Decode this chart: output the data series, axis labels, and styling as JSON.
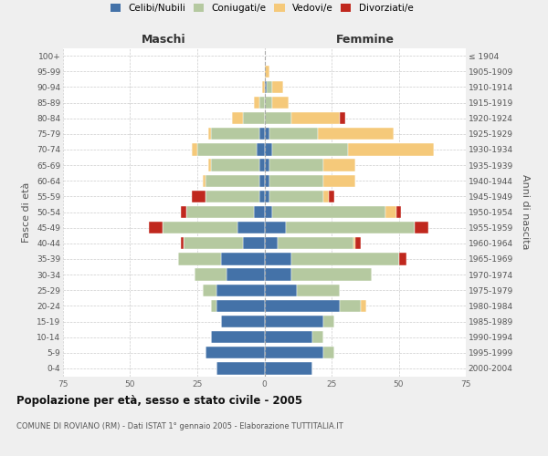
{
  "age_groups": [
    "0-4",
    "5-9",
    "10-14",
    "15-19",
    "20-24",
    "25-29",
    "30-34",
    "35-39",
    "40-44",
    "45-49",
    "50-54",
    "55-59",
    "60-64",
    "65-69",
    "70-74",
    "75-79",
    "80-84",
    "85-89",
    "90-94",
    "95-99",
    "100+"
  ],
  "birth_years": [
    "2000-2004",
    "1995-1999",
    "1990-1994",
    "1985-1989",
    "1980-1984",
    "1975-1979",
    "1970-1974",
    "1965-1969",
    "1960-1964",
    "1955-1959",
    "1950-1954",
    "1945-1949",
    "1940-1944",
    "1935-1939",
    "1930-1934",
    "1925-1929",
    "1920-1924",
    "1915-1919",
    "1910-1914",
    "1905-1909",
    "≤ 1904"
  ],
  "colors": {
    "celibi": "#4472a8",
    "coniugati": "#b5c9a0",
    "vedovi": "#f5c97a",
    "divorziati": "#c0281e"
  },
  "male_celibi": [
    18,
    22,
    20,
    16,
    18,
    18,
    14,
    16,
    8,
    10,
    4,
    2,
    2,
    2,
    3,
    2,
    0,
    0,
    0,
    0,
    0
  ],
  "male_coniugati": [
    0,
    0,
    0,
    0,
    2,
    5,
    12,
    16,
    22,
    28,
    25,
    20,
    20,
    18,
    22,
    18,
    8,
    2,
    0,
    0,
    0
  ],
  "male_vedovi": [
    0,
    0,
    0,
    0,
    0,
    0,
    0,
    0,
    0,
    0,
    0,
    0,
    1,
    1,
    2,
    1,
    4,
    2,
    1,
    0,
    0
  ],
  "male_divorziati": [
    0,
    0,
    0,
    0,
    0,
    0,
    0,
    0,
    1,
    5,
    2,
    5,
    0,
    0,
    0,
    0,
    0,
    0,
    0,
    0,
    0
  ],
  "fem_nubili": [
    18,
    22,
    18,
    22,
    28,
    12,
    10,
    10,
    5,
    8,
    3,
    2,
    2,
    2,
    3,
    2,
    0,
    0,
    1,
    0,
    0
  ],
  "fem_coniugate": [
    0,
    4,
    4,
    4,
    8,
    16,
    30,
    40,
    28,
    48,
    42,
    20,
    20,
    20,
    28,
    18,
    10,
    3,
    2,
    0,
    0
  ],
  "fem_vedove": [
    0,
    0,
    0,
    0,
    2,
    0,
    0,
    0,
    1,
    0,
    4,
    2,
    12,
    12,
    32,
    28,
    18,
    6,
    4,
    2,
    0
  ],
  "fem_divorziate": [
    0,
    0,
    0,
    0,
    0,
    0,
    0,
    3,
    2,
    5,
    2,
    2,
    0,
    0,
    0,
    0,
    2,
    0,
    0,
    0,
    0
  ],
  "xlim": 75,
  "title": "Popolazione per età, sesso e stato civile - 2005",
  "subtitle": "COMUNE DI ROVIANO (RM) - Dati ISTAT 1° gennaio 2005 - Elaborazione TUTTITALIA.IT",
  "xlabel_left": "Maschi",
  "xlabel_right": "Femmine",
  "ylabel_left": "Fasce di età",
  "ylabel_right": "Anni di nascita",
  "legend_labels": [
    "Celibi/Nubili",
    "Coniugati/e",
    "Vedovi/e",
    "Divorziati/e"
  ],
  "bg_color": "#efefef",
  "plot_bg": "#ffffff",
  "grid_color": "#cccccc",
  "xticks": [
    -75,
    -50,
    -25,
    0,
    25,
    50,
    75
  ]
}
